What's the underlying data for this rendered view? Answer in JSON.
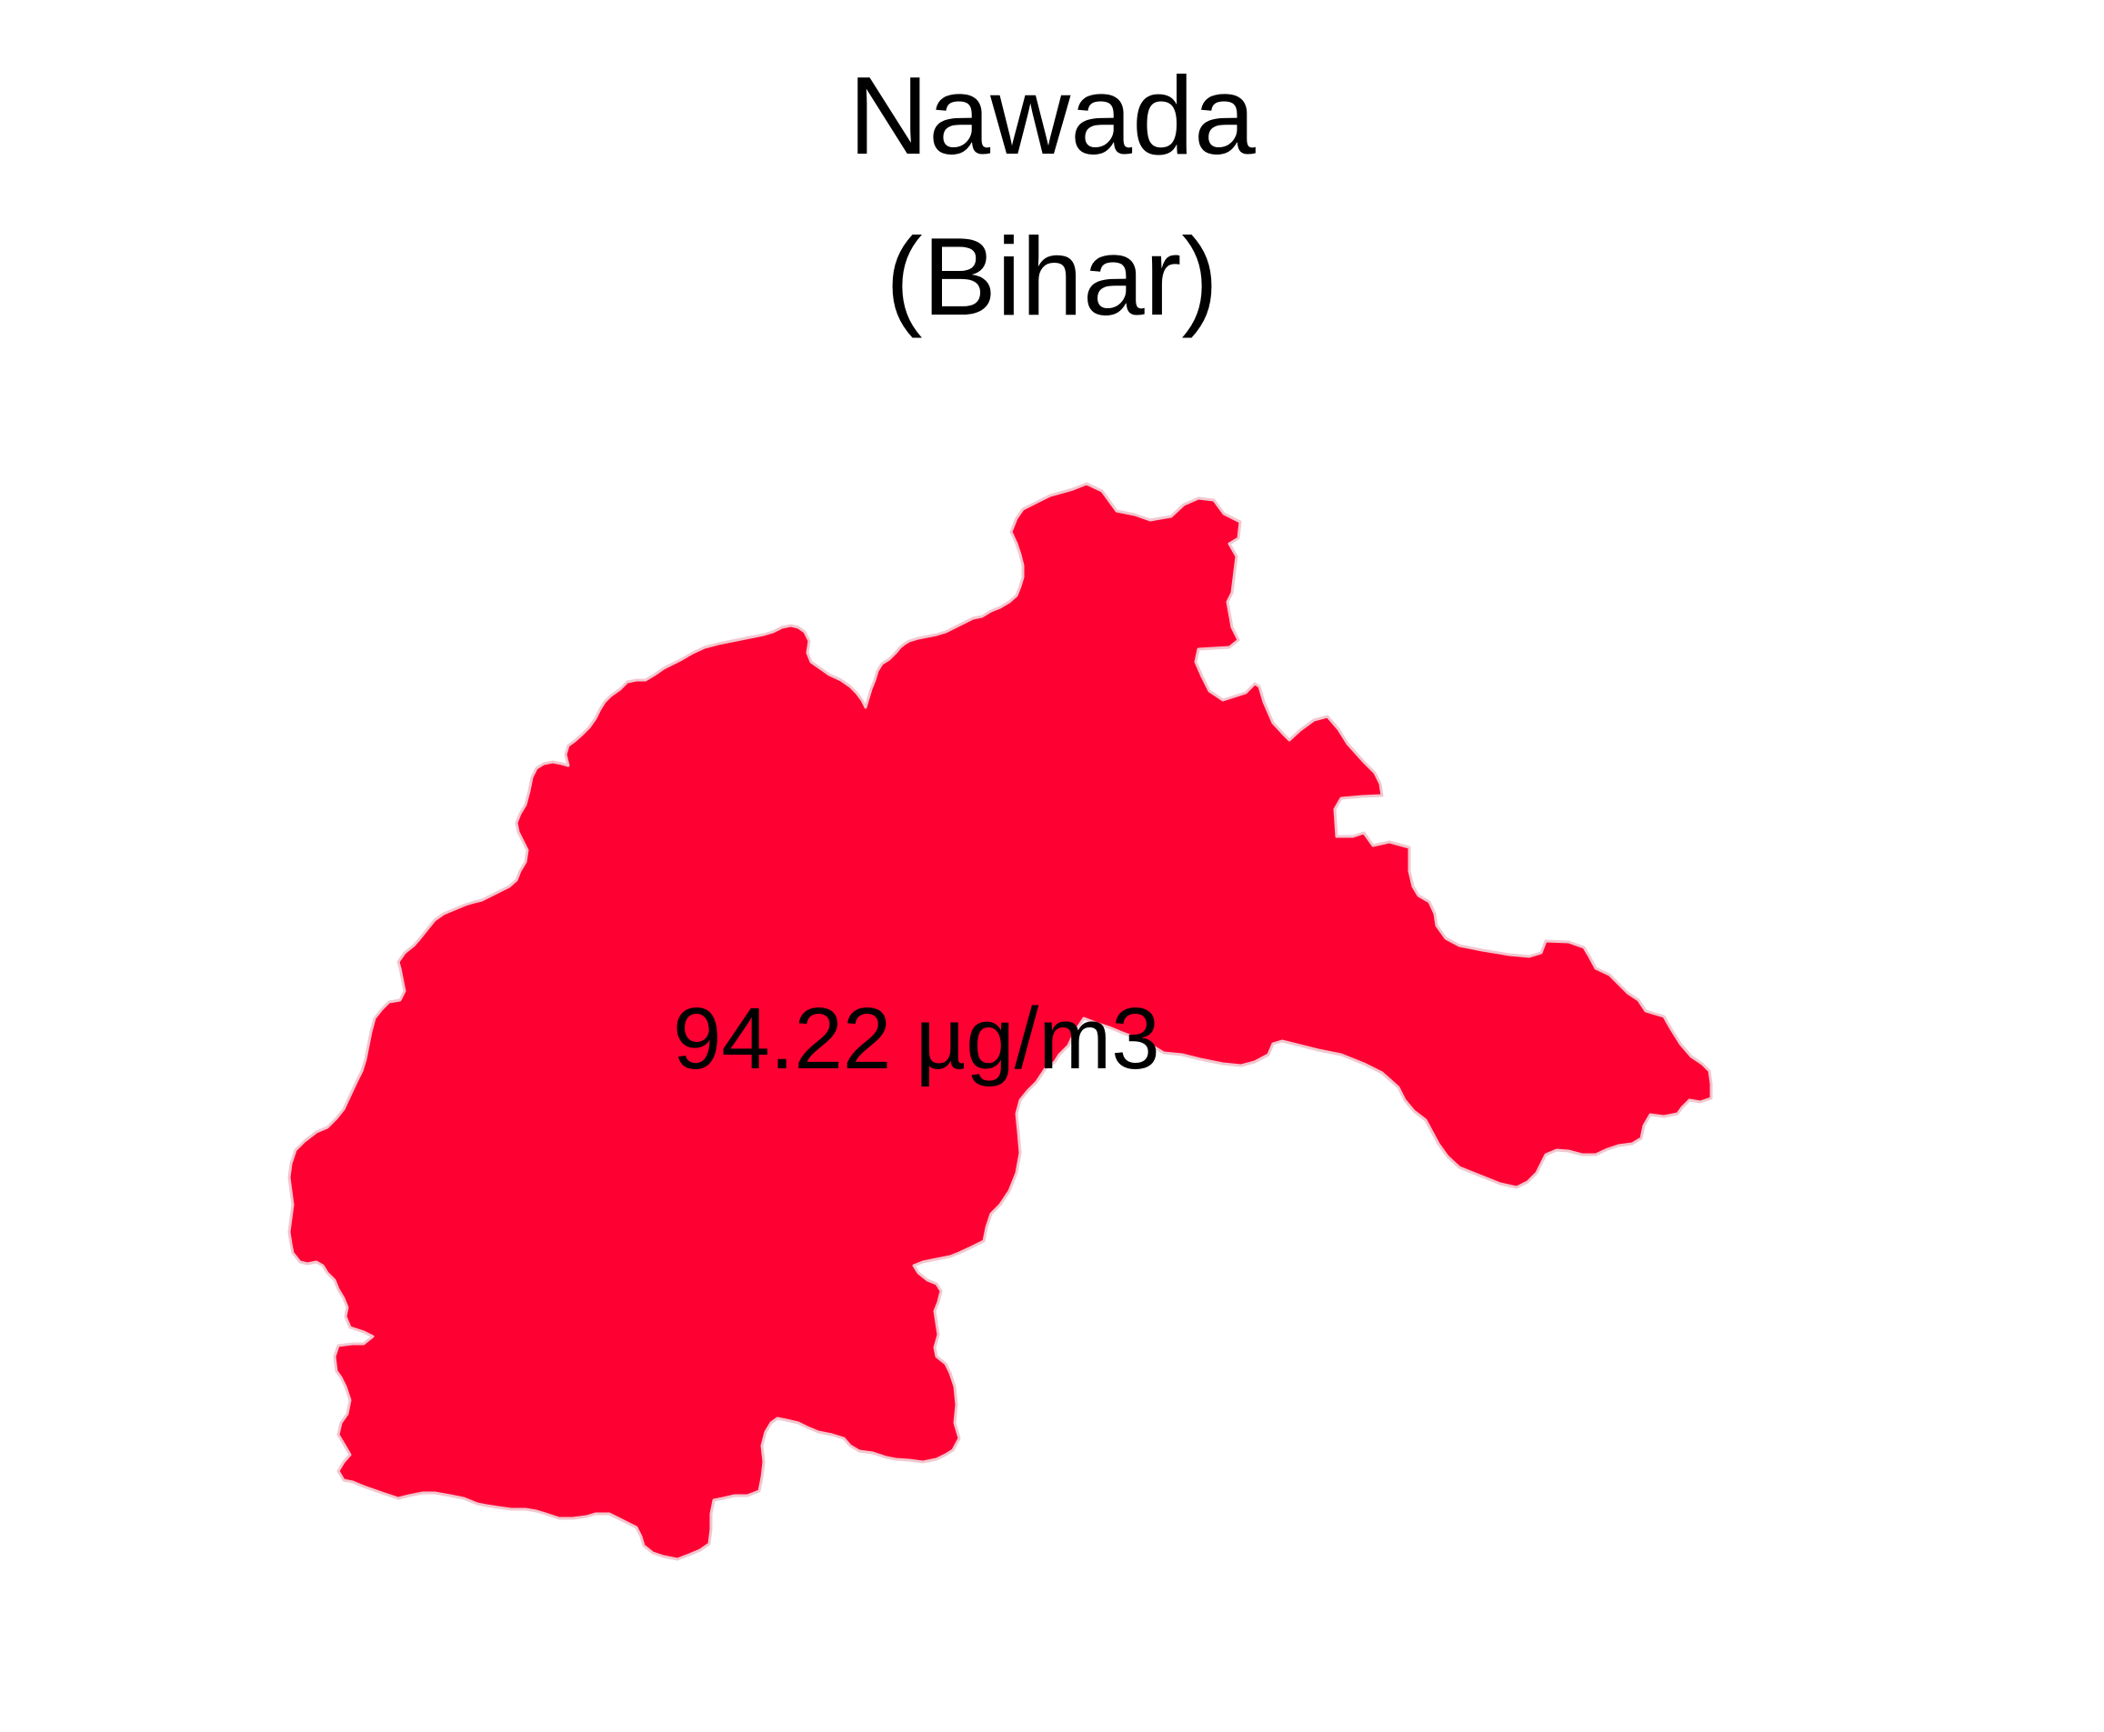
{
  "map": {
    "district": "Nawada",
    "state": "(Bihar)",
    "value_label": "94.22 µg/m3",
    "fill_color": "#FF0033",
    "outline_color": "#F2C7CF"
  }
}
